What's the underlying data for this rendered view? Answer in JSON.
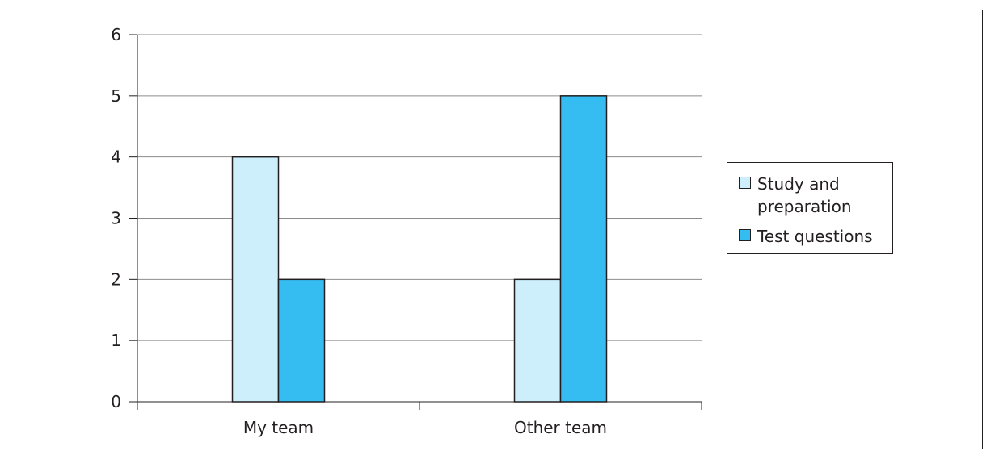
{
  "chart_data": {
    "type": "bar",
    "categories": [
      "My team",
      "Other team"
    ],
    "series": [
      {
        "name": "Study and preparation",
        "values": [
          4,
          2
        ],
        "color": "#cdeefb"
      },
      {
        "name": "Test questions",
        "values": [
          2,
          5
        ],
        "color": "#35bdf1"
      }
    ],
    "yticks": [
      0,
      1,
      2,
      3,
      4,
      5,
      6
    ],
    "ylim": [
      0,
      6
    ],
    "grid": true,
    "legend": "right",
    "title": "",
    "xlabel": "",
    "ylabel": ""
  }
}
